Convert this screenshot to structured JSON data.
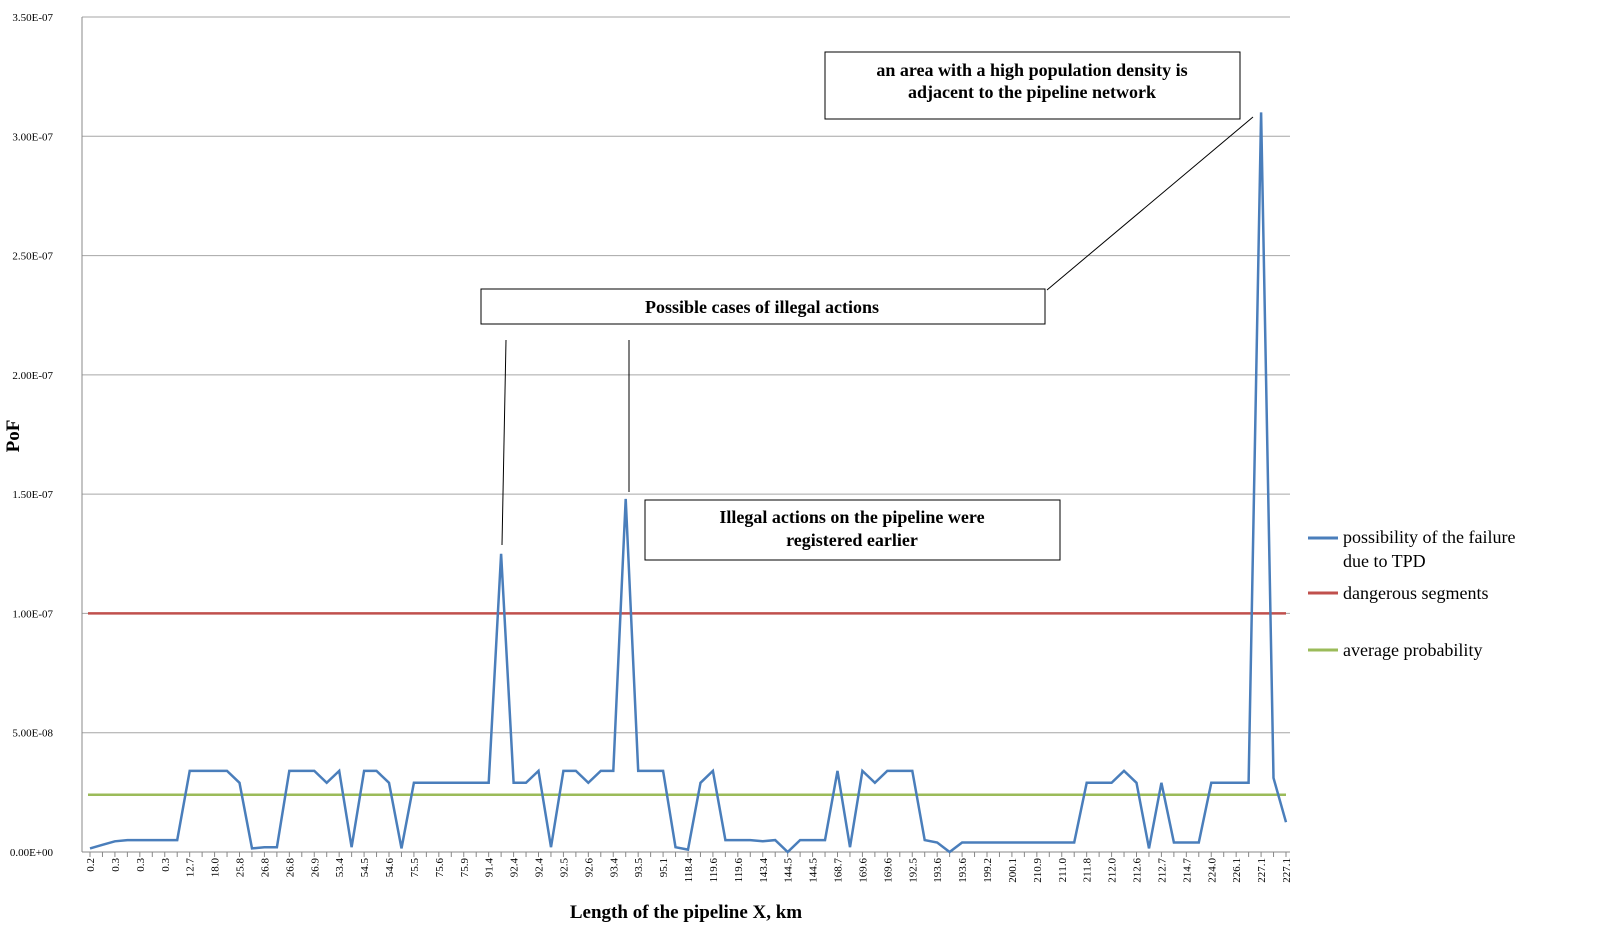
{
  "chart_data": {
    "type": "line",
    "xlabel": "Length of the pipeline X, km",
    "ylabel": "PoF",
    "ylim": [
      0,
      3.5e-07
    ],
    "yticks": [
      "0.00E+00",
      "5.00E-08",
      "1.00E-07",
      "1.50E-07",
      "2.00E-07",
      "2.50E-07",
      "3.00E-07",
      "3.50E-07"
    ],
    "ytick_values": [
      0,
      5e-08,
      1e-07,
      1.5e-07,
      2e-07,
      2.5e-07,
      3e-07,
      3.5e-07
    ],
    "grid": true,
    "legend_position": "right",
    "x_tick_labels": [
      "0.2",
      "0.3",
      "0.3",
      "0.3",
      "12.7",
      "18.0",
      "25.8",
      "26.8",
      "26.8",
      "26.9",
      "53.4",
      "54.5",
      "54.6",
      "75.5",
      "75.6",
      "75.9",
      "91.4",
      "92.4",
      "92.4",
      "92.5",
      "92.6",
      "93.4",
      "93.5",
      "95.1",
      "118.4",
      "119.6",
      "119.6",
      "143.4",
      "144.5",
      "144.5",
      "168.7",
      "169.6",
      "169.6",
      "192.5",
      "193.6",
      "193.6",
      "199.2",
      "200.1",
      "210.9",
      "211.0",
      "211.8",
      "212.0",
      "212.6",
      "212.7",
      "214.7",
      "224.0",
      "226.1",
      "227.1",
      "227.1"
    ],
    "tick_every": 2,
    "value_unit": 1e-08,
    "series": [
      {
        "name": "possibility of the failure due to TPD",
        "color": "#4a7ebb",
        "values": [
          0.15,
          0.3,
          0.45,
          0.5,
          0.5,
          0.5,
          0.5,
          0.5,
          3.4,
          3.4,
          3.4,
          3.4,
          2.9,
          0.15,
          0.2,
          0.2,
          3.4,
          3.4,
          3.4,
          2.9,
          3.4,
          0.2,
          3.4,
          3.4,
          2.9,
          0.15,
          2.9,
          2.9,
          2.9,
          2.9,
          2.9,
          2.9,
          2.9,
          12.5,
          2.9,
          2.9,
          3.4,
          0.2,
          3.4,
          3.4,
          2.9,
          3.4,
          3.4,
          14.8,
          3.4,
          3.4,
          3.4,
          0.2,
          0.1,
          2.9,
          3.4,
          0.5,
          0.5,
          0.5,
          0.45,
          0.5,
          0.0,
          0.5,
          0.5,
          0.5,
          3.4,
          0.2,
          3.4,
          2.9,
          3.4,
          3.4,
          3.4,
          0.5,
          0.4,
          0.0,
          0.4,
          0.4,
          0.4,
          0.4,
          0.4,
          0.4,
          0.4,
          0.4,
          0.4,
          0.4,
          2.9,
          2.9,
          2.9,
          3.4,
          2.9,
          0.15,
          2.9,
          0.4,
          0.4,
          0.4,
          2.9,
          2.9,
          2.9,
          2.9,
          31.0,
          3.1,
          1.25
        ]
      },
      {
        "name": "dangerous segments",
        "color": "#c0504d",
        "constant": 1e-07
      },
      {
        "name": "average probability",
        "color": "#9bbb59",
        "constant": 2.4e-08
      }
    ],
    "annotations": [
      {
        "text_lines": [
          "an area with a high population density is",
          "adjacent to the pipeline network"
        ]
      },
      {
        "text_lines": [
          "Possible cases of illegal actions"
        ]
      },
      {
        "text_lines": [
          "Illegal actions on the pipeline were",
          "registered earlier"
        ]
      }
    ]
  }
}
